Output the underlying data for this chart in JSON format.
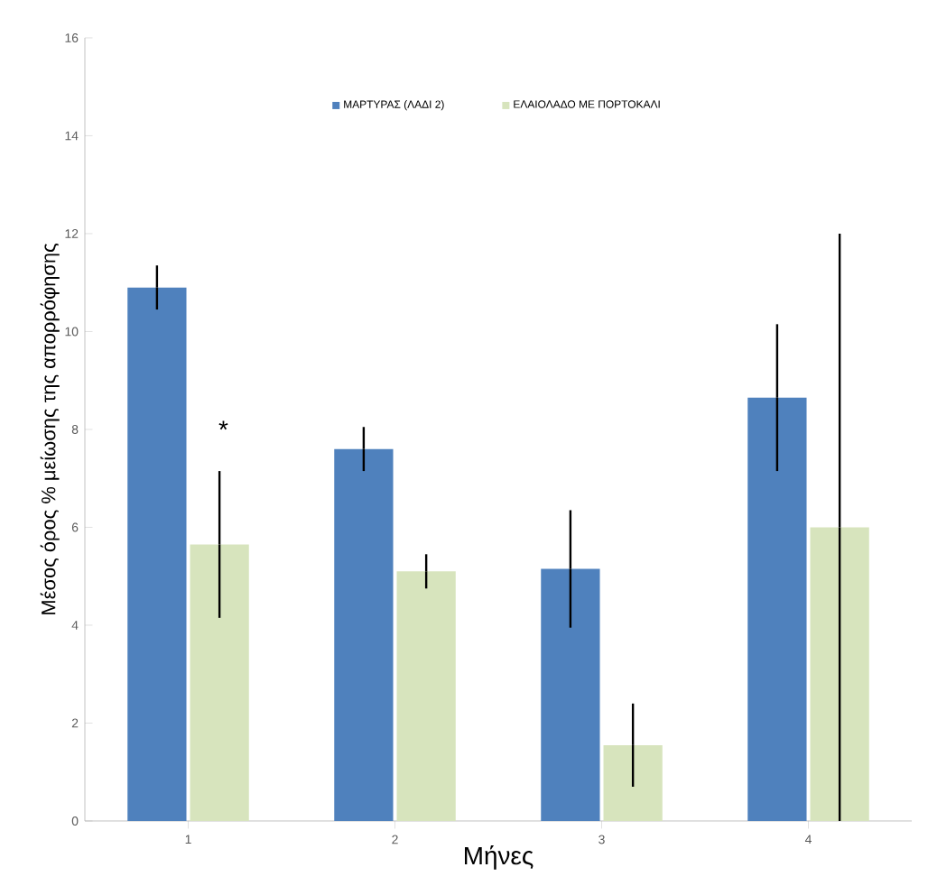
{
  "chart_data": {
    "type": "bar",
    "xlabel": "Μήνες",
    "ylabel": "Μέσος όρος % μείωσης της απορρόφησης",
    "categories": [
      "1",
      "2",
      "3",
      "4"
    ],
    "series": [
      {
        "name": "ΜΑΡΤΥΡΑΣ (ΛΑΔΙ 2)",
        "color": "#4f81bd",
        "values": [
          10.9,
          7.6,
          5.15,
          8.65
        ],
        "errors": [
          0.45,
          0.45,
          1.2,
          1.5
        ]
      },
      {
        "name": "ΕΛΑΙΟΛΑΔΟ ΜΕ ΠΟΡΤΟΚΑΛΙ",
        "color": "#d7e4bd",
        "values": [
          5.65,
          5.1,
          1.55,
          6.0
        ],
        "errors": [
          1.5,
          0.35,
          0.85,
          6.0
        ]
      }
    ],
    "ylim": [
      0,
      16
    ],
    "yticks": [
      0,
      2,
      4,
      6,
      8,
      10,
      12,
      14,
      16
    ],
    "legend": "top",
    "grid": false,
    "annotations": [
      {
        "text": "*",
        "x": "1",
        "y": 8
      }
    ]
  }
}
